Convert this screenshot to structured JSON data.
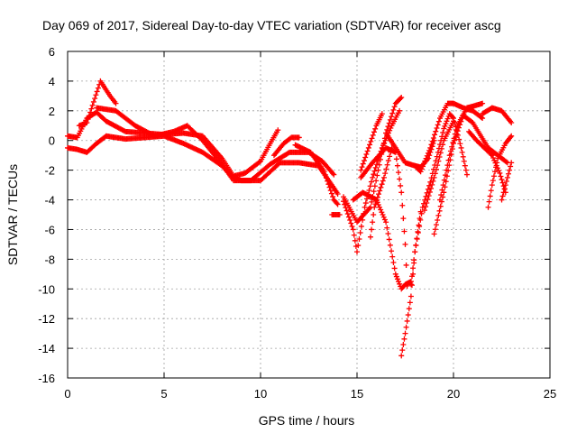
{
  "chart_data": {
    "type": "scatter",
    "title": "Day 069 of 2017, Sidereal Day-to-day VTEC variation (SDTVAR) for receiver ascg",
    "xlabel": "GPS time / hours",
    "ylabel": "SDTVAR / TECUs",
    "xlim": [
      0,
      25
    ],
    "ylim": [
      -16,
      6
    ],
    "xticks": [
      "0",
      "5",
      "10",
      "15",
      "20",
      "25"
    ],
    "yticks": [
      "6",
      "4",
      "2",
      "0",
      "-2",
      "-4",
      "-6",
      "-8",
      "-10",
      "-12",
      "-14",
      "-16"
    ],
    "grid": true,
    "marker": "+",
    "color": "#ff0000",
    "tracks": [
      [
        [
          0.0,
          0.3
        ],
        [
          0.5,
          0.2
        ],
        [
          1.0,
          1.5
        ],
        [
          1.5,
          1.9
        ],
        [
          2.0,
          1.3
        ],
        [
          3.0,
          0.6
        ],
        [
          4.0,
          0.5
        ],
        [
          5.0,
          0.4
        ],
        [
          6.0,
          0.5
        ],
        [
          7.0,
          0.3
        ],
        [
          8.0,
          -1.2
        ],
        [
          8.6,
          -2.4
        ],
        [
          9.2,
          -2.2
        ],
        [
          10.0,
          -1.4
        ],
        [
          10.5,
          -0.2
        ],
        [
          10.9,
          0.7
        ]
      ],
      [
        [
          0.6,
          1.0
        ],
        [
          1.0,
          1.2
        ],
        [
          1.7,
          4.0
        ],
        [
          2.2,
          3.0
        ],
        [
          2.5,
          2.5
        ]
      ],
      [
        [
          1.5,
          2.2
        ],
        [
          2.5,
          2.0
        ],
        [
          3.5,
          1.0
        ],
        [
          4.5,
          0.3
        ],
        [
          5.5,
          0.6
        ],
        [
          6.2,
          1.0
        ],
        [
          7.0,
          0.0
        ],
        [
          8.0,
          -1.6
        ],
        [
          8.6,
          -2.7
        ],
        [
          9.5,
          -2.7
        ],
        [
          10.5,
          -1.6
        ],
        [
          11.5,
          -0.8
        ],
        [
          12.5,
          -0.8
        ],
        [
          13.2,
          -1.4
        ],
        [
          13.8,
          -2.3
        ]
      ],
      [
        [
          0.0,
          -0.5
        ],
        [
          0.5,
          -0.6
        ],
        [
          1.0,
          -0.8
        ],
        [
          1.5,
          -0.2
        ],
        [
          2.0,
          0.3
        ],
        [
          3.0,
          0.1
        ],
        [
          4.0,
          0.2
        ],
        [
          5.0,
          0.3
        ],
        [
          6.0,
          -0.2
        ],
        [
          7.0,
          -0.8
        ],
        [
          8.0,
          -1.7
        ],
        [
          8.5,
          -2.4
        ],
        [
          9.0,
          -2.7
        ],
        [
          10.0,
          -2.7
        ],
        [
          11.0,
          -1.5
        ],
        [
          12.0,
          -1.5
        ],
        [
          13.0,
          -1.7
        ],
        [
          13.8,
          -3.2
        ],
        [
          14.0,
          -3.6
        ]
      ],
      [
        [
          10.7,
          -1.0
        ],
        [
          11.2,
          -0.2
        ],
        [
          11.6,
          0.2
        ],
        [
          12.0,
          0.2
        ]
      ],
      [
        [
          11.8,
          -0.3
        ],
        [
          12.6,
          -0.8
        ],
        [
          13.3,
          -2.1
        ],
        [
          13.8,
          -4.0
        ],
        [
          14.0,
          -4.3
        ]
      ],
      [
        [
          13.7,
          -5.0
        ],
        [
          14.1,
          -5.0
        ]
      ],
      [
        [
          14.3,
          -3.8
        ],
        [
          15.0,
          -5.5
        ],
        [
          15.7,
          -4.5
        ],
        [
          16.5,
          0.5
        ],
        [
          17.0,
          2.5
        ],
        [
          17.3,
          2.9
        ]
      ],
      [
        [
          14.3,
          -4.1
        ],
        [
          14.8,
          -6.0
        ],
        [
          15.0,
          -7.5
        ],
        [
          15.4,
          -4.5
        ],
        [
          15.8,
          -2.5
        ],
        [
          16.3,
          -0.5
        ],
        [
          16.8,
          1.0
        ],
        [
          17.2,
          2.0
        ]
      ],
      [
        [
          14.8,
          -4.0
        ],
        [
          15.3,
          -3.5
        ],
        [
          16.0,
          -4.0
        ],
        [
          16.5,
          -5.5
        ],
        [
          17.0,
          -9.0
        ],
        [
          17.3,
          -10.0
        ],
        [
          17.5,
          -9.7
        ],
        [
          17.8,
          -9.5
        ]
      ],
      [
        [
          15.2,
          -2.5
        ],
        [
          15.8,
          -1.5
        ],
        [
          16.5,
          -0.5
        ],
        [
          17.0,
          -0.8
        ],
        [
          17.3,
          -3.5
        ],
        [
          17.5,
          -7.0
        ],
        [
          17.6,
          -9.8
        ]
      ],
      [
        [
          15.2,
          -2.0
        ],
        [
          15.6,
          -0.5
        ],
        [
          16.0,
          1.0
        ],
        [
          16.3,
          1.8
        ]
      ],
      [
        [
          15.7,
          -6.5
        ],
        [
          15.9,
          -4.5
        ],
        [
          16.4,
          -2.5
        ],
        [
          16.8,
          -0.5
        ]
      ],
      [
        [
          16.5,
          0.5
        ],
        [
          17.0,
          -0.5
        ],
        [
          17.5,
          -1.5
        ],
        [
          18.0,
          -1.7
        ],
        [
          18.3,
          -2.1
        ],
        [
          18.8,
          -0.5
        ],
        [
          19.3,
          1.5
        ],
        [
          19.7,
          2.5
        ],
        [
          20.0,
          2.5
        ],
        [
          20.5,
          2.2
        ],
        [
          21.0,
          2.0
        ],
        [
          21.5,
          1.5
        ]
      ],
      [
        [
          17.3,
          -14.5
        ],
        [
          17.5,
          -13.0
        ],
        [
          17.8,
          -10.5
        ],
        [
          18.0,
          -7.5
        ],
        [
          18.3,
          -4.8
        ]
      ],
      [
        [
          17.8,
          -9.7
        ],
        [
          18.0,
          -7.5
        ],
        [
          18.4,
          -4.5
        ],
        [
          18.8,
          -2.8
        ],
        [
          19.2,
          -0.8
        ],
        [
          19.5,
          0.8
        ],
        [
          19.8,
          1.8
        ],
        [
          20.0,
          1.5
        ],
        [
          20.4,
          -0.5
        ],
        [
          20.7,
          -2.3
        ]
      ],
      [
        [
          18.5,
          -4.7
        ],
        [
          19.0,
          -2.5
        ],
        [
          19.5,
          0.0
        ],
        [
          20.0,
          1.3
        ]
      ],
      [
        [
          19.3,
          -4.0
        ],
        [
          19.8,
          -1.0
        ],
        [
          20.2,
          1.0
        ],
        [
          20.7,
          2.2
        ],
        [
          21.0,
          2.3
        ],
        [
          21.5,
          2.5
        ]
      ],
      [
        [
          19.0,
          -6.3
        ],
        [
          19.5,
          -3.5
        ],
        [
          20.0,
          -0.2
        ],
        [
          20.5,
          1.7
        ],
        [
          21.0,
          1.2
        ],
        [
          21.8,
          -0.5
        ],
        [
          22.3,
          -1.0
        ],
        [
          22.8,
          -1.5
        ]
      ],
      [
        [
          18.0,
          -1.7
        ],
        [
          18.3,
          -1.8
        ],
        [
          18.7,
          -1.2
        ],
        [
          19.0,
          0.0
        ]
      ],
      [
        [
          20.8,
          0.6
        ],
        [
          21.2,
          0.0
        ],
        [
          21.6,
          -0.5
        ],
        [
          22.0,
          -1.0
        ],
        [
          22.4,
          -2.2
        ],
        [
          22.7,
          -3.5
        ]
      ],
      [
        [
          21.8,
          -4.5
        ],
        [
          22.0,
          -3.0
        ],
        [
          22.3,
          -1.2
        ],
        [
          22.7,
          -0.2
        ],
        [
          23.0,
          0.3
        ]
      ],
      [
        [
          21.5,
          1.8
        ],
        [
          22.0,
          2.2
        ],
        [
          22.5,
          2.0
        ],
        [
          23.0,
          1.2
        ]
      ],
      [
        [
          22.5,
          -4.0
        ],
        [
          22.7,
          -3.0
        ],
        [
          23.0,
          -1.5
        ]
      ]
    ]
  }
}
